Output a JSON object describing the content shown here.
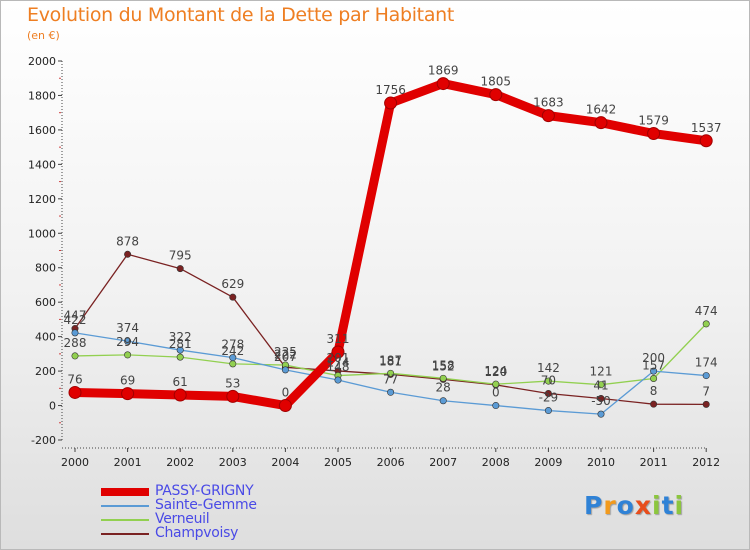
{
  "title": "Evolution du Montant de la Dette par Habitant",
  "subtitle": "(en €)",
  "colors": {
    "title": "#ee7e22",
    "legend_text": "#4a4ae6",
    "axis": "#444444"
  },
  "logo": {
    "letters": [
      "P",
      "r",
      "o",
      "x",
      "i",
      "t",
      "i"
    ],
    "colors": [
      "#2f82d6",
      "#f29a1c",
      "#2f82d6",
      "#e84d1c",
      "#8cc63e",
      "#2f82d6",
      "#8cc63e"
    ]
  },
  "chart_data": {
    "type": "line",
    "title": "Evolution du Montant de la Dette par Habitant",
    "ylabel": "(en €)",
    "xlabel": "",
    "x": [
      "2000",
      "2001",
      "2002",
      "2003",
      "2004",
      "2005",
      "2006",
      "2007",
      "2008",
      "2009",
      "2010",
      "2011",
      "2012"
    ],
    "ylim": [
      -200,
      2000
    ],
    "yticks": [
      "-200",
      "0",
      "200",
      "400",
      "600",
      "800",
      "1000",
      "1200",
      "1400",
      "1600",
      "1800",
      "2000"
    ],
    "grid": false,
    "legend_position": "bottom-left",
    "series": [
      {
        "name": "PASSY-GRIGNY",
        "color": "#e00000",
        "values": [
          76,
          69,
          61,
          53,
          0,
          311,
          1756,
          1869,
          1805,
          1683,
          1642,
          1579,
          1537
        ],
        "labels": [
          "76",
          "69",
          "61",
          "53",
          "0",
          "311",
          "1756",
          "1869",
          "1805",
          "1683",
          "1642",
          "1579",
          "1537"
        ]
      },
      {
        "name": "Sainte-Gemme",
        "color": "#5b9bd5",
        "values": [
          422,
          374,
          322,
          278,
          207,
          148,
          77,
          28,
          0,
          -29,
          -50,
          200,
          174
        ],
        "labels": [
          "422",
          "374",
          "322",
          "278",
          "207",
          "148",
          "77",
          "28",
          "0",
          "-29",
          "-50",
          "200",
          "174"
        ]
      },
      {
        "name": "Verneuil",
        "color": "#92d050",
        "values": [
          288,
          294,
          281,
          242,
          235,
          174,
          187,
          158,
          124,
          142,
          121,
          157,
          474
        ],
        "labels": [
          "288",
          "294",
          "281",
          "242",
          "235",
          "174",
          "187",
          "158",
          "124",
          "142",
          "121",
          "157",
          "474"
        ]
      },
      {
        "name": "Champvoisy",
        "color": "#7a2222",
        "values": [
          447,
          878,
          795,
          629,
          222,
          201,
          181,
          152,
          120,
          70,
          41,
          8,
          7
        ],
        "labels": [
          "447",
          "878",
          "795",
          "629",
          "222",
          "201",
          "181",
          "152",
          "120",
          "70",
          "41",
          "8",
          "7"
        ]
      }
    ]
  }
}
